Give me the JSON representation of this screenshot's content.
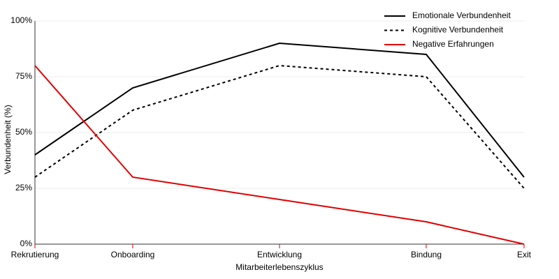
{
  "chart_data": {
    "type": "line",
    "x": [
      0,
      20,
      50,
      80,
      100
    ],
    "xlim": [
      0,
      100
    ],
    "xticks": [
      {
        "value": 0,
        "label": "Rekrutierung"
      },
      {
        "value": 20,
        "label": "Onboarding"
      },
      {
        "value": 50,
        "label": "Entwicklung"
      },
      {
        "value": 80,
        "label": "Bindung"
      },
      {
        "value": 100,
        "label": "Exit"
      }
    ],
    "ylim": [
      0,
      100
    ],
    "yticks": [
      {
        "value": 0,
        "label": "0%"
      },
      {
        "value": 25,
        "label": "25%"
      },
      {
        "value": 50,
        "label": "50%"
      },
      {
        "value": 75,
        "label": "75%"
      },
      {
        "value": 100,
        "label": "100%"
      }
    ],
    "x_label": "Mitarbeiterlebenszyklus",
    "y_label": "Verbundenheit (%)",
    "grid": true,
    "legend": "top-right",
    "series": [
      {
        "name": "Emotionale Verbundenheit",
        "color": "#000000",
        "dash": false,
        "values": [
          40,
          70,
          90,
          85,
          30
        ]
      },
      {
        "name": "Kognitive Verbundenheit",
        "color": "#000000",
        "dash": true,
        "values": [
          30,
          60,
          80,
          75,
          25
        ]
      },
      {
        "name": "Negative Erfahrungen",
        "color": "#e00000",
        "dash": false,
        "values": [
          80,
          30,
          20,
          10,
          0
        ]
      }
    ]
  }
}
